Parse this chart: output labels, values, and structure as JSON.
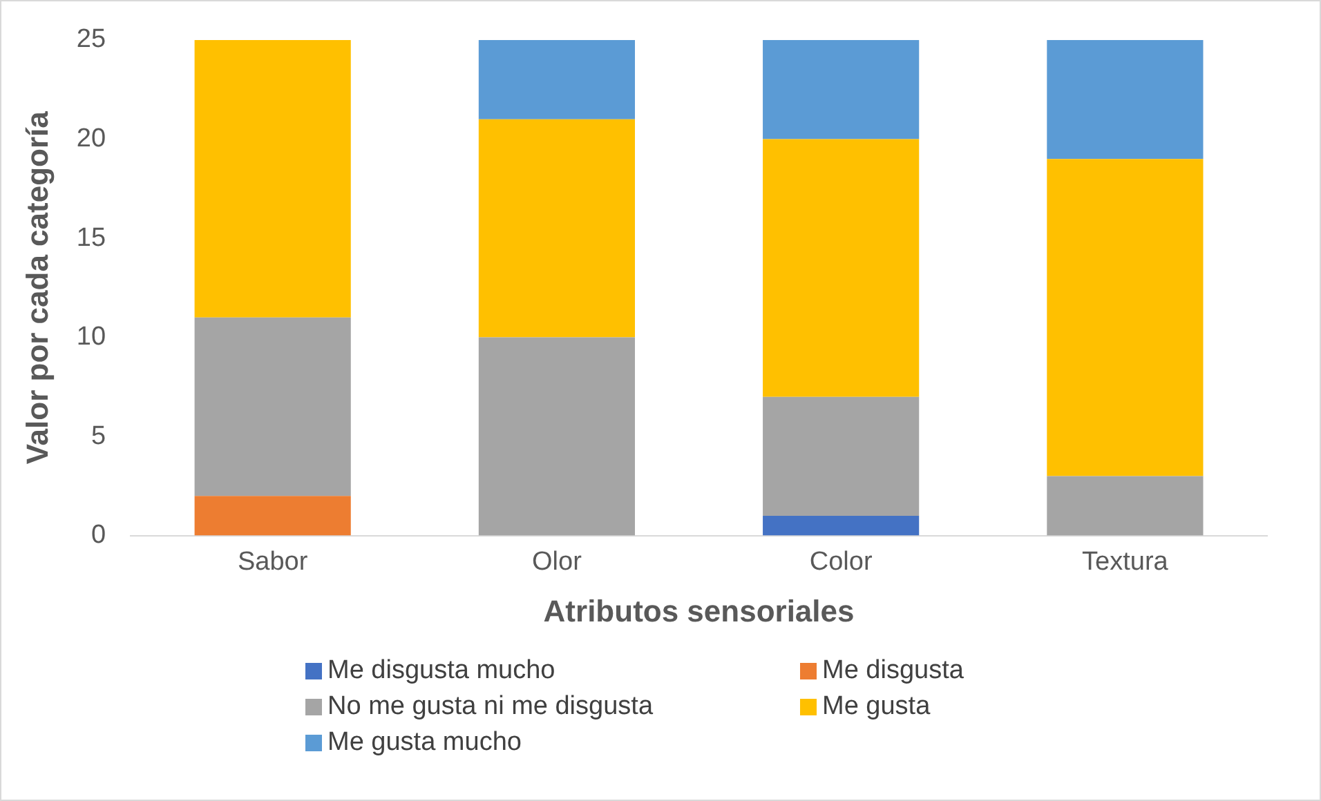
{
  "chart_data": {
    "type": "bar",
    "stacked": true,
    "xlabel": "Atributos sensoriales",
    "ylabel": "Valor por cada categoría",
    "categories": [
      "Sabor",
      "Olor",
      "Color",
      "Textura"
    ],
    "ylim": [
      0,
      25
    ],
    "yticks": [
      0,
      5,
      10,
      15,
      20,
      25
    ],
    "grid": false,
    "legend": "bottom",
    "series": [
      {
        "name": "Me disgusta mucho",
        "color": "#4472c4",
        "values": [
          0,
          0,
          1,
          0
        ]
      },
      {
        "name": "Me disgusta",
        "color": "#ed7d31",
        "values": [
          2,
          0,
          0,
          0
        ]
      },
      {
        "name": "No me gusta ni me disgusta",
        "color": "#a5a5a5",
        "values": [
          9,
          10,
          6,
          3
        ]
      },
      {
        "name": "Me gusta",
        "color": "#ffc000",
        "values": [
          14,
          11,
          13,
          16
        ]
      },
      {
        "name": "Me gusta mucho",
        "color": "#5b9bd5",
        "values": [
          0,
          4,
          5,
          6
        ]
      }
    ]
  }
}
